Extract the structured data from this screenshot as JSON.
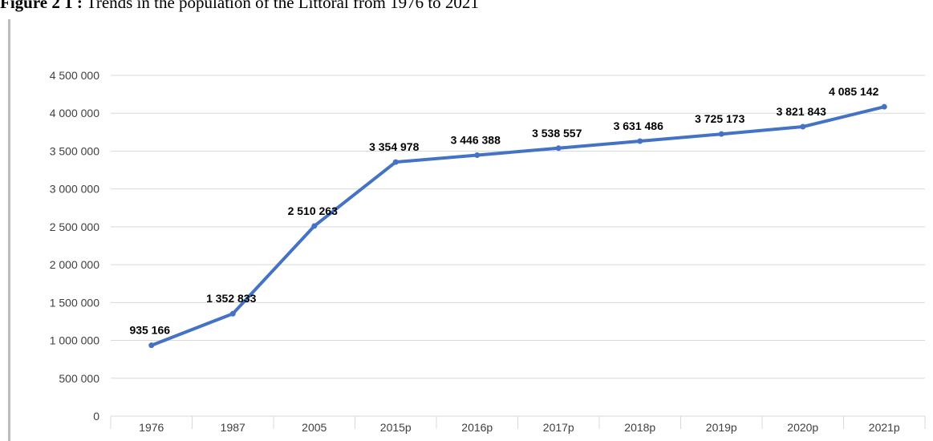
{
  "caption": {
    "label": "Figure 2 1 :",
    "text": "Trends in the population of the Littoral from 1976 to 2021"
  },
  "colors": {
    "series": "#4472c4",
    "grid": "#d9d9d9",
    "axis_text": "#404040"
  },
  "chart_data": {
    "type": "line",
    "title": "",
    "xlabel": "",
    "ylabel": "",
    "categories": [
      "1976",
      "1987",
      "2005",
      "2015p",
      "2016p",
      "2017p",
      "2018p",
      "2019p",
      "2020p",
      "2021p"
    ],
    "series": [
      {
        "values": [
          935166,
          1352833,
          2510263,
          3354978,
          3446388,
          3538557,
          3631486,
          3725173,
          3821843,
          4085142
        ],
        "data_labels": [
          "935 166",
          "1 352 833",
          "2 510 263",
          "3 354 978",
          "3 446 388",
          "3 538 557",
          "3 631 486",
          "3 725 173",
          "3 821 843",
          "4 085 142"
        ]
      }
    ],
    "ylim": [
      0,
      4500000
    ],
    "yticks": [
      0,
      500000,
      1000000,
      1500000,
      2000000,
      2500000,
      3000000,
      3500000,
      4000000,
      4500000
    ],
    "ytick_labels": [
      "0",
      "500 000",
      "1 000 000",
      "1 500 000",
      "2 000 000",
      "2 500 000",
      "3 000 000",
      "3 500 000",
      "4 000 000",
      "4 500 000"
    ],
    "grid": true,
    "legend": "none"
  }
}
